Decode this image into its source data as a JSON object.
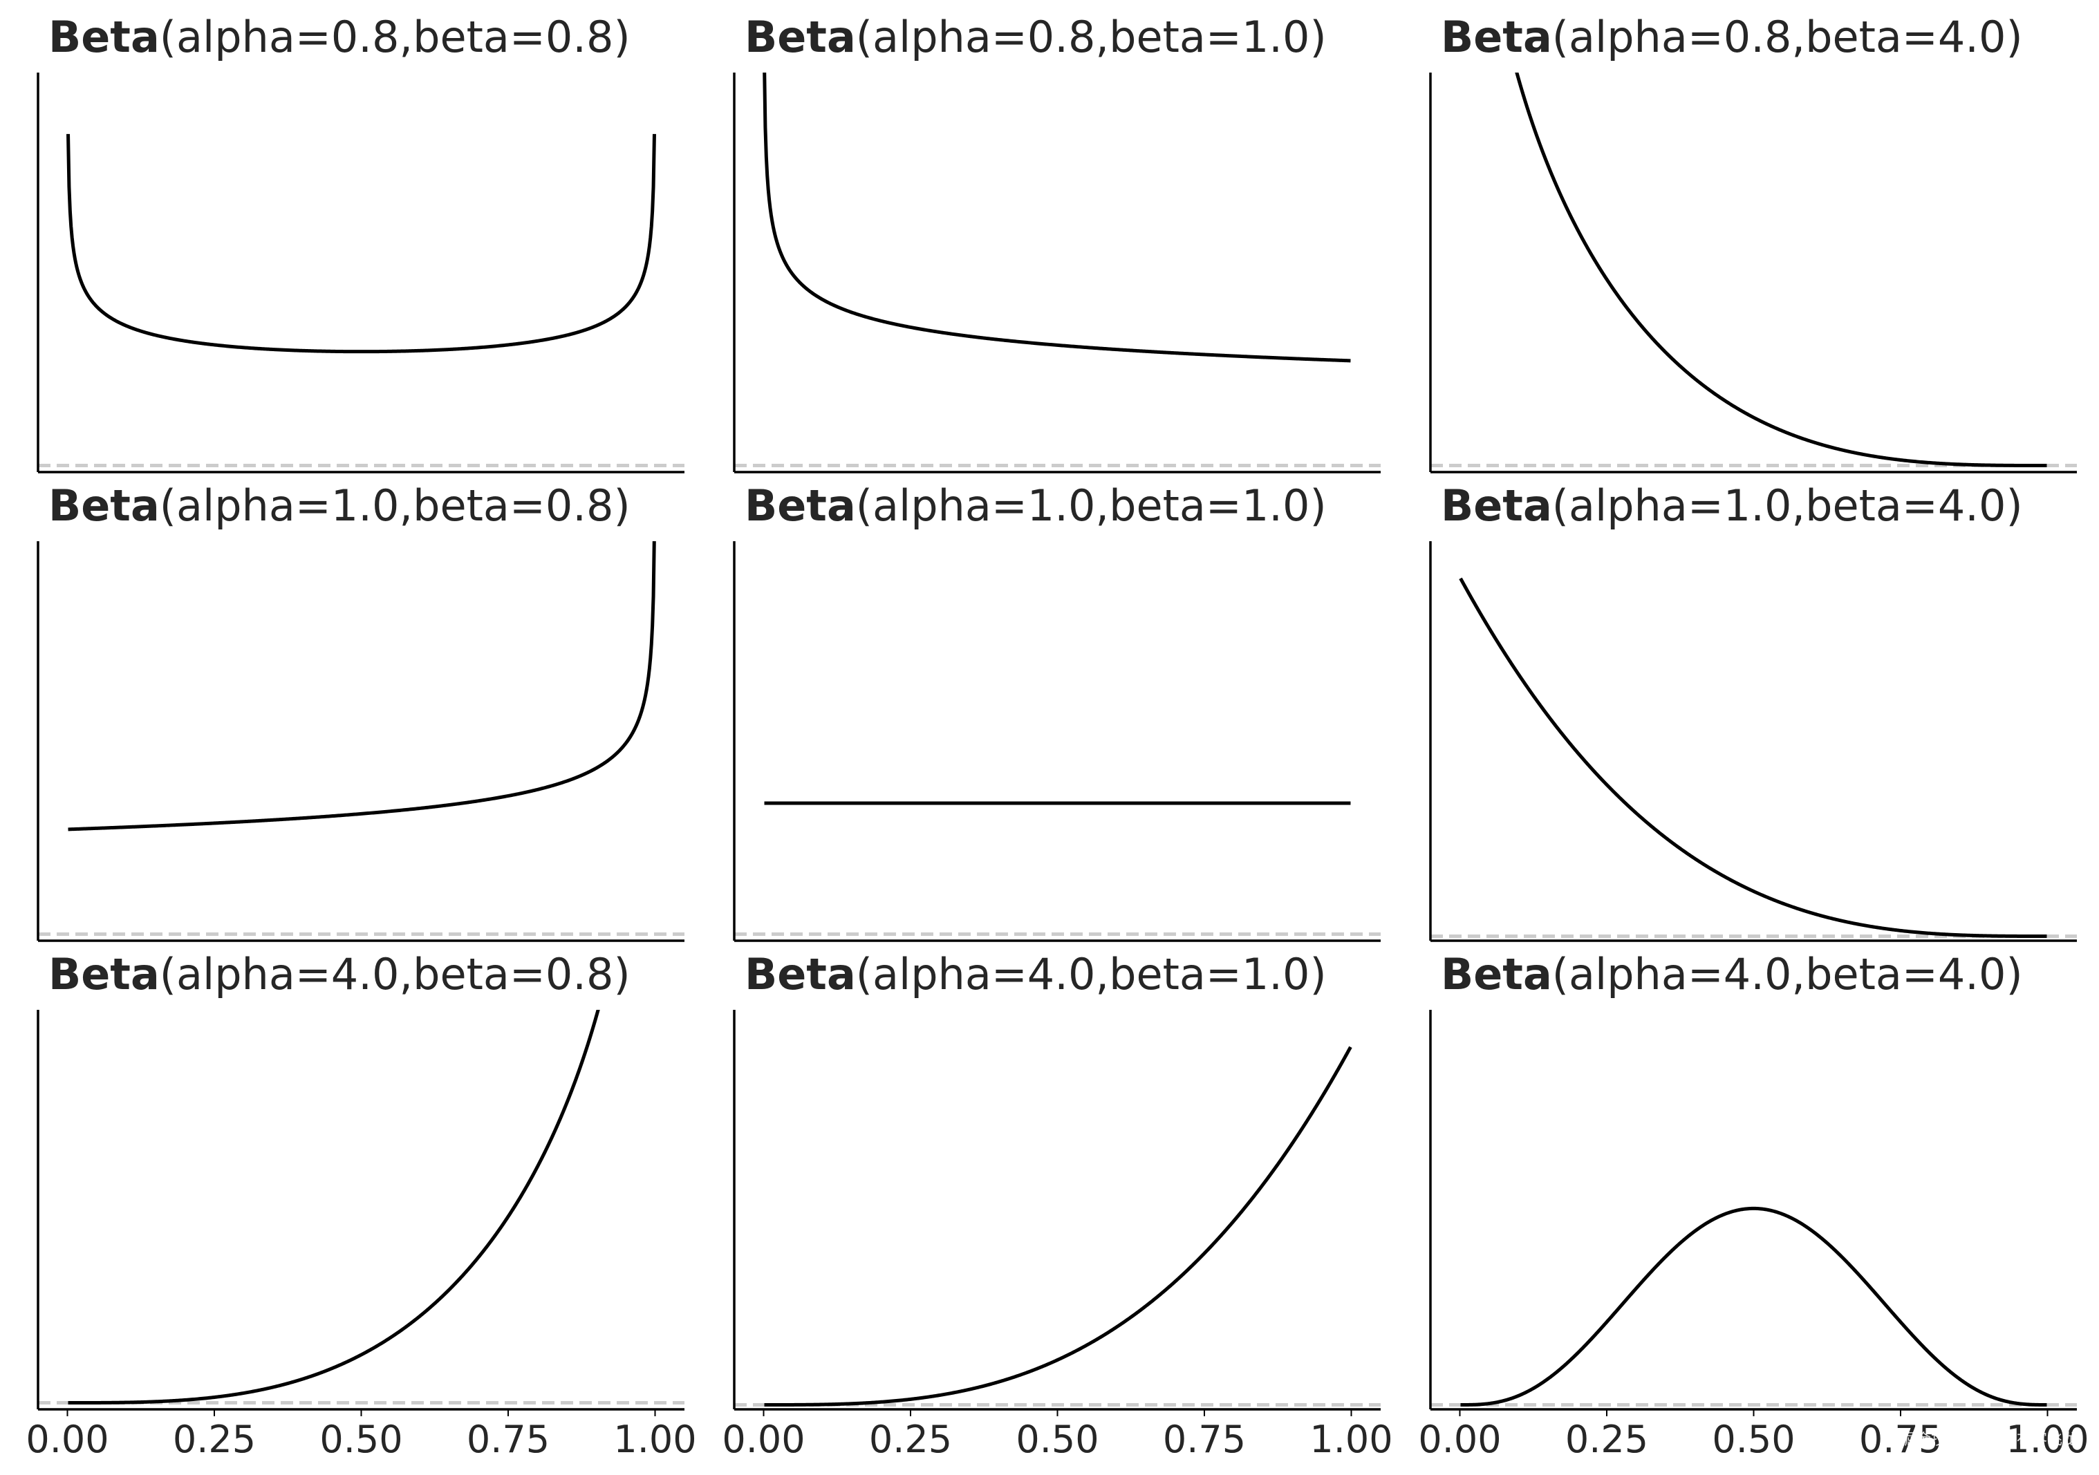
{
  "chart_data": {
    "type": "line",
    "layout": "3x3 grid",
    "sharex": true,
    "x_ticks": [
      "0.00",
      "0.25",
      "0.50",
      "0.75",
      "1.00"
    ],
    "xlim": [
      -0.05,
      1.05
    ],
    "y_axis_labels_shown": false,
    "line_color": "#000000",
    "baseline_color": "#cccccc",
    "baseline_style": "dashed at y=0",
    "panels": [
      {
        "title_bold": "Beta",
        "title_rest": "(alpha=0.8,beta=0.8)",
        "alpha": 0.8,
        "beta": 0.8,
        "ylim": [
          -0.05,
          3.0
        ]
      },
      {
        "title_bold": "Beta",
        "title_rest": "(alpha=0.8,beta=1.0)",
        "alpha": 0.8,
        "beta": 1.0,
        "ylim": [
          -0.05,
          3.0
        ]
      },
      {
        "title_bold": "Beta",
        "title_rest": "(alpha=0.8,beta=4.0)",
        "alpha": 0.8,
        "beta": 4.0,
        "ylim": [
          -0.05,
          3.0
        ]
      },
      {
        "title_bold": "Beta",
        "title_rest": "(alpha=1.0,beta=0.8)",
        "alpha": 1.0,
        "beta": 0.8,
        "ylim": [
          -0.05,
          3.0
        ]
      },
      {
        "title_bold": "Beta",
        "title_rest": "(alpha=1.0,beta=1.0)",
        "alpha": 1.0,
        "beta": 1.0,
        "ylim": [
          -0.05,
          3.0
        ]
      },
      {
        "title_bold": "Beta",
        "title_rest": "(alpha=1.0,beta=4.0)",
        "alpha": 1.0,
        "beta": 4.0,
        "ylim": [
          -0.05,
          4.4
        ]
      },
      {
        "title_bold": "Beta",
        "title_rest": "(alpha=4.0,beta=0.8)",
        "alpha": 4.0,
        "beta": 0.8,
        "ylim": [
          -0.05,
          3.0
        ]
      },
      {
        "title_bold": "Beta",
        "title_rest": "(alpha=4.0,beta=1.0)",
        "alpha": 4.0,
        "beta": 1.0,
        "ylim": [
          -0.05,
          4.4
        ]
      },
      {
        "title_bold": "Beta",
        "title_rest": "(alpha=4.0,beta=4.0)",
        "alpha": 4.0,
        "beta": 4.0,
        "ylim": [
          -0.05,
          4.4
        ]
      }
    ]
  },
  "watermark": "掘金技术社区 @ 布客飞龙"
}
